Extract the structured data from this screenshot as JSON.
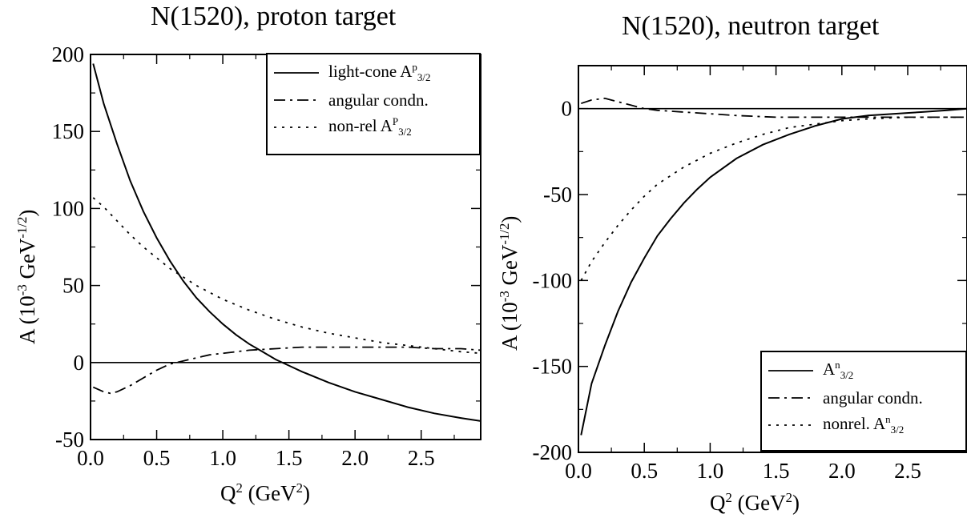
{
  "chart_data": [
    {
      "type": "line",
      "title": "N(1520), proton target",
      "xlabel": "Q² (GeV²)",
      "ylabel": "A (10⁻³ GeV⁻¹ᐟ²)",
      "xlim": [
        0.0,
        2.95
      ],
      "ylim": [
        -50,
        200
      ],
      "xticks": [
        0.0,
        0.5,
        1.0,
        1.5,
        2.0,
        2.5
      ],
      "xtick_labels": [
        "0.0",
        "0.5",
        "1.0",
        "1.5",
        "2.0",
        "2.5"
      ],
      "yticks": [
        -50,
        0,
        50,
        100,
        150,
        200
      ],
      "ytick_labels": [
        "-50",
        "0",
        "50",
        "100",
        "150",
        "200"
      ],
      "legend_position": "top-right",
      "zero_line": true,
      "series": [
        {
          "name": "light-cone AP3/2",
          "legend_main": "light-cone A",
          "legend_sup": "p",
          "legend_sub": "3/2",
          "style": "solid",
          "x": [
            0.02,
            0.1,
            0.2,
            0.3,
            0.4,
            0.5,
            0.6,
            0.7,
            0.8,
            0.9,
            1.0,
            1.1,
            1.2,
            1.3,
            1.4,
            1.5,
            1.6,
            1.8,
            2.0,
            2.2,
            2.4,
            2.6,
            2.8,
            2.95
          ],
          "y": [
            194,
            168,
            142,
            118,
            98,
            81,
            66,
            53,
            42,
            33,
            25,
            18,
            12,
            7,
            2,
            -2,
            -6,
            -13,
            -19,
            -24,
            -29,
            -33,
            -36,
            -38
          ]
        },
        {
          "name": "angular condn.",
          "legend_main": "angular condn.",
          "legend_sup": "",
          "legend_sub": "",
          "style": "dashdot",
          "x": [
            0.02,
            0.1,
            0.15,
            0.2,
            0.3,
            0.4,
            0.5,
            0.6,
            0.7,
            0.8,
            0.9,
            1.0,
            1.2,
            1.4,
            1.6,
            1.8,
            2.0,
            2.2,
            2.4,
            2.6,
            2.8,
            2.95
          ],
          "y": [
            -16,
            -19,
            -20,
            -19,
            -15,
            -10,
            -5,
            -1,
            1,
            3,
            5,
            6,
            8,
            9,
            10,
            10,
            10,
            10,
            10,
            9,
            9,
            8
          ]
        },
        {
          "name": "non-rel AP3/2",
          "legend_main": "non-rel A",
          "legend_sup": "P",
          "legend_sub": "3/2",
          "style": "dotted",
          "x": [
            0.02,
            0.1,
            0.2,
            0.3,
            0.4,
            0.5,
            0.6,
            0.8,
            1.0,
            1.2,
            1.4,
            1.6,
            1.8,
            2.0,
            2.2,
            2.4,
            2.6,
            2.8,
            2.95
          ],
          "y": [
            107,
            101,
            92,
            83,
            75,
            68,
            61,
            50,
            41,
            34,
            28,
            23,
            19,
            16,
            13,
            11,
            9,
            7,
            6
          ]
        }
      ]
    },
    {
      "type": "line",
      "title": "N(1520), neutron target",
      "xlabel": "Q² (GeV²)",
      "ylabel": "A (10⁻³ GeV⁻¹ᐟ²)",
      "xlim": [
        0.0,
        2.95
      ],
      "ylim": [
        -200,
        25
      ],
      "xticks": [
        0.0,
        0.5,
        1.0,
        1.5,
        2.0,
        2.5
      ],
      "xtick_labels": [
        "0.0",
        "0.5",
        "1.0",
        "1.5",
        "2.0",
        "2.5"
      ],
      "yticks": [
        -200,
        -150,
        -100,
        -50,
        0
      ],
      "ytick_labels": [
        "-200",
        "-150",
        "-100",
        "-50",
        "0"
      ],
      "legend_position": "bottom-right",
      "zero_line": true,
      "series": [
        {
          "name": "An3/2",
          "legend_main": "A",
          "legend_sup": "n",
          "legend_sub": "3/2",
          "style": "solid",
          "x": [
            0.02,
            0.1,
            0.2,
            0.3,
            0.4,
            0.5,
            0.6,
            0.7,
            0.8,
            0.9,
            1.0,
            1.2,
            1.4,
            1.6,
            1.8,
            2.0,
            2.2,
            2.4,
            2.6,
            2.8,
            2.95
          ],
          "y": [
            -190,
            -160,
            -138,
            -118,
            -101,
            -87,
            -74,
            -64,
            -55,
            -47,
            -40,
            -29,
            -21,
            -15,
            -10,
            -6,
            -4,
            -3,
            -2,
            -1,
            0
          ]
        },
        {
          "name": "angular condn.",
          "legend_main": "angular condn.",
          "legend_sup": "",
          "legend_sub": "",
          "style": "dashdot",
          "x": [
            0.02,
            0.1,
            0.2,
            0.3,
            0.4,
            0.5,
            0.6,
            0.8,
            1.0,
            1.2,
            1.5,
            2.0,
            2.5,
            2.95
          ],
          "y": [
            3,
            5,
            6,
            4,
            2,
            0,
            -1,
            -2,
            -3,
            -4,
            -5,
            -5,
            -5,
            -5
          ]
        },
        {
          "name": "nonrel. An3/2",
          "legend_main": "nonrel. A",
          "legend_sup": "n",
          "legend_sub": "3/2",
          "style": "dotted",
          "x": [
            0.02,
            0.1,
            0.2,
            0.3,
            0.4,
            0.5,
            0.6,
            0.8,
            1.0,
            1.2,
            1.4,
            1.6,
            1.8,
            2.0,
            2.2,
            2.5,
            2.8,
            2.95
          ],
          "y": [
            -100,
            -89,
            -78,
            -68,
            -59,
            -51,
            -44,
            -34,
            -26,
            -20,
            -15,
            -11,
            -9,
            -7,
            -6,
            -5,
            -5,
            -5
          ]
        }
      ]
    }
  ]
}
